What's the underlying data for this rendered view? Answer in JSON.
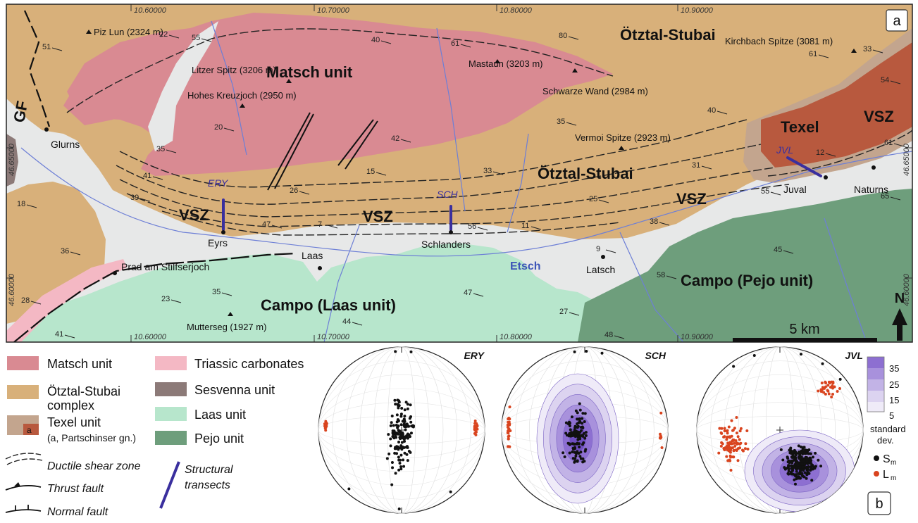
{
  "map": {
    "panel_label": "a",
    "units": {
      "matsch": "Matsch unit",
      "oetztal_north": "Ötztal-Stubai",
      "oetztal_south": "Ötztal-Stubai",
      "texel": "Texel",
      "campo_laas": "Campo (Laas unit)",
      "campo_pejo": "Campo (Pejo unit)"
    },
    "vsz_labels": [
      "VSZ",
      "VSZ",
      "VSZ",
      "VSZ"
    ],
    "gf_label": "GF",
    "river": "Etsch",
    "peaks": [
      "Piz Lun (2324 m)",
      "Litzer Spitz (3206 m)",
      "Hohes Kreuzjoch (2950 m)",
      "Mastaun (3203 m)",
      "Schwarze Wand (2984 m)",
      "Kirchbach Spitze (3081 m)",
      "Vermoi Spitze (2923 m)",
      "Mutterseg (1927 m)"
    ],
    "towns": [
      "Glurns",
      "Eyrs",
      "Laas",
      "Schlanders",
      "Latsch",
      "Juval",
      "Naturns",
      "Prad am Stilfserjoch"
    ],
    "transects": [
      "ERY",
      "SCH",
      "JVL"
    ],
    "coords_top": [
      "10.60000",
      "10.70000",
      "10.80000",
      "10.90000"
    ],
    "coords_bottom": [
      "10.60000",
      "10.70000",
      "10.80000",
      "10.90000"
    ],
    "coords_left": [
      "46.65000",
      "46.60000"
    ],
    "coords_right": [
      "46.65000",
      "46.60000"
    ],
    "dips": [
      "51",
      "55",
      "22",
      "40",
      "61",
      "80",
      "33",
      "61",
      "54",
      "20",
      "35",
      "42",
      "35",
      "40",
      "61",
      "12",
      "41",
      "39",
      "26",
      "15",
      "33",
      "31",
      "55",
      "18",
      "47",
      "7",
      "56",
      "11",
      "25",
      "9",
      "38",
      "65",
      "36",
      "28",
      "41",
      "23",
      "35",
      "44",
      "47",
      "27",
      "45",
      "58",
      "48"
    ],
    "scale": "5 km",
    "north": "N"
  },
  "legend": {
    "items": [
      "Matsch unit",
      "Ötztal-Stubai",
      "complex",
      "Texel unit",
      "(a, Partschinser gn.)",
      "Triassic carbonates",
      "Sesvenna unit",
      "Laas unit",
      "Pejo unit"
    ],
    "texel_inset": "a",
    "symbols": [
      "Ductile shear zone",
      "Thrust fault",
      "Normal fault"
    ],
    "transects_label_1": "Structural",
    "transects_label_2": "transects",
    "colors": {
      "matsch": "#d98a92",
      "oetztal": "#d8b07a",
      "texel": "#c3a58e",
      "partschinser": "#b8593e",
      "triassic": "#f4b8c4",
      "sesvenna": "#8c7a78",
      "laas": "#b7e6cc",
      "pejo": "#6e9e7c",
      "transect": "#3a2f9e",
      "sm": "#111111",
      "lm": "#d9441f"
    }
  },
  "stereonets": {
    "titles": [
      "ERY",
      "SCH",
      "JVL"
    ],
    "colorbar_ticks": [
      "35",
      "25",
      "15",
      "5"
    ],
    "colorbar_label_1": "standard",
    "colorbar_label_2": "dev.",
    "sm_label": "S",
    "sm_sub": "m",
    "lm_label": "L",
    "lm_sub": "m",
    "panel_label": "b"
  }
}
